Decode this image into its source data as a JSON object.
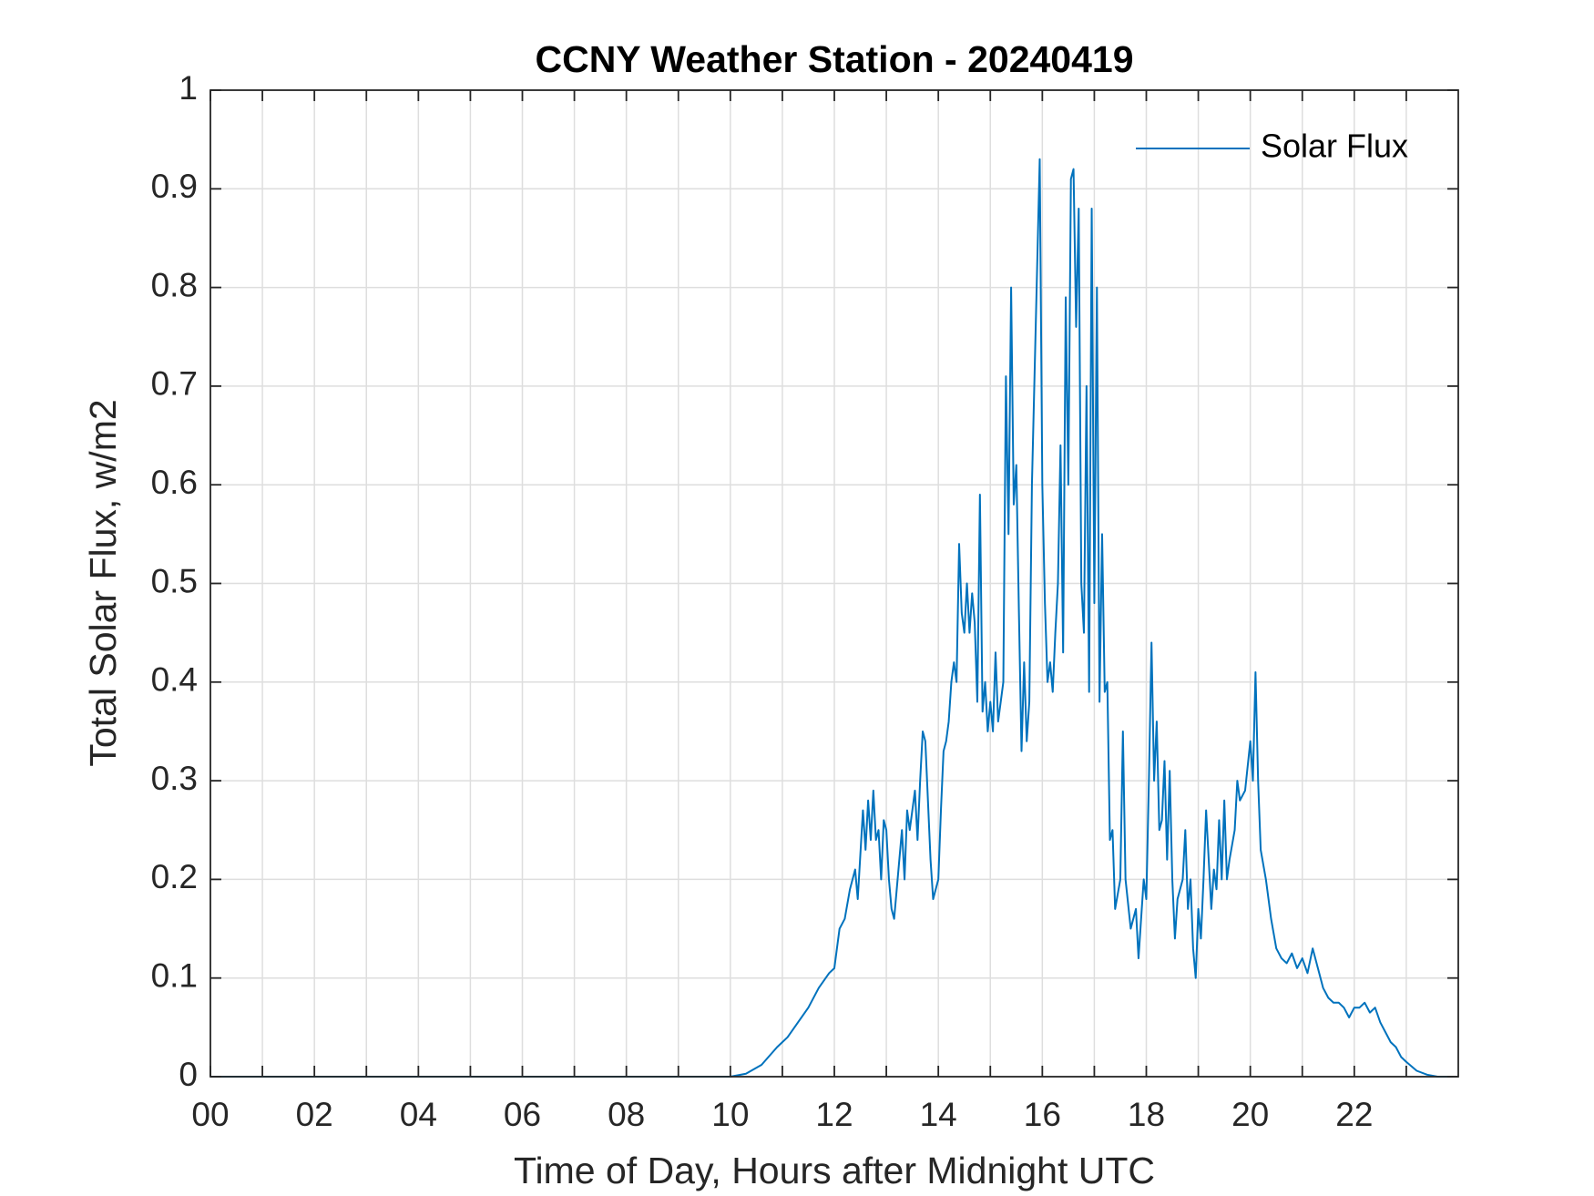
{
  "chart_data": {
    "type": "line",
    "title": "CCNY Weather Station - 20240419",
    "x_label": "Time of Day, Hours after Midnight UTC",
    "y_label": "Total Solar Flux, w/m2",
    "xlim": [
      0,
      24
    ],
    "xticks": [
      {
        "value": 0,
        "label": "00"
      },
      {
        "value": 2,
        "label": "02"
      },
      {
        "value": 4,
        "label": "04"
      },
      {
        "value": 6,
        "label": "06"
      },
      {
        "value": 8,
        "label": "08"
      },
      {
        "value": 10,
        "label": "10"
      },
      {
        "value": 12,
        "label": "12"
      },
      {
        "value": 14,
        "label": "14"
      },
      {
        "value": 16,
        "label": "16"
      },
      {
        "value": 18,
        "label": "18"
      },
      {
        "value": 20,
        "label": "20"
      },
      {
        "value": 22,
        "label": "22"
      }
    ],
    "x_minor_ticks": [
      1,
      3,
      5,
      7,
      9,
      11,
      13,
      15,
      17,
      19,
      21,
      23
    ],
    "ylim": [
      0,
      1
    ],
    "yticks": [
      0,
      0.1,
      0.2,
      0.3,
      0.4,
      0.5,
      0.6,
      0.7,
      0.8,
      0.9,
      1
    ],
    "grid": true,
    "legend": "upper right",
    "x": [
      0,
      10,
      10.3,
      10.6,
      10.9,
      11.1,
      11.3,
      11.5,
      11.7,
      11.9,
      12,
      12.1,
      12.2,
      12.3,
      12.4,
      12.45,
      12.55,
      12.6,
      12.65,
      12.7,
      12.75,
      12.8,
      12.85,
      12.9,
      12.95,
      13,
      13.05,
      13.1,
      13.15,
      13.2,
      13.3,
      13.35,
      13.4,
      13.45,
      13.55,
      13.6,
      13.65,
      13.7,
      13.75,
      13.8,
      13.85,
      13.9,
      14,
      14.05,
      14.1,
      14.15,
      14.2,
      14.25,
      14.3,
      14.35,
      14.4,
      14.45,
      14.5,
      14.55,
      14.6,
      14.65,
      14.7,
      14.75,
      14.8,
      14.85,
      14.9,
      14.95,
      15,
      15.05,
      15.1,
      15.15,
      15.2,
      15.25,
      15.3,
      15.35,
      15.4,
      15.45,
      15.5,
      15.55,
      15.6,
      15.65,
      15.7,
      15.75,
      15.8,
      15.85,
      15.9,
      15.95,
      16,
      16.05,
      16.1,
      16.15,
      16.2,
      16.25,
      16.3,
      16.35,
      16.4,
      16.45,
      16.5,
      16.55,
      16.6,
      16.65,
      16.7,
      16.75,
      16.8,
      16.85,
      16.9,
      16.95,
      17,
      17.05,
      17.1,
      17.15,
      17.2,
      17.25,
      17.3,
      17.35,
      17.4,
      17.5,
      17.55,
      17.6,
      17.7,
      17.8,
      17.85,
      17.9,
      17.95,
      18,
      18.05,
      18.1,
      18.15,
      18.2,
      18.25,
      18.3,
      18.35,
      18.4,
      18.45,
      18.5,
      18.55,
      18.6,
      18.7,
      18.75,
      18.8,
      18.85,
      18.9,
      18.95,
      19,
      19.05,
      19.1,
      19.15,
      19.2,
      19.25,
      19.3,
      19.35,
      19.4,
      19.45,
      19.5,
      19.55,
      19.6,
      19.7,
      19.75,
      19.8,
      19.9,
      20,
      20.05,
      20.1,
      20.15,
      20.2,
      20.3,
      20.4,
      20.5,
      20.6,
      20.7,
      20.8,
      20.9,
      21,
      21.1,
      21.2,
      21.3,
      21.4,
      21.5,
      21.6,
      21.7,
      21.8,
      21.9,
      22,
      22.1,
      22.2,
      22.3,
      22.4,
      22.5,
      22.6,
      22.7,
      22.8,
      22.9,
      23,
      23.2,
      23.4,
      23.6,
      23.9
    ],
    "series": [
      {
        "name": "Solar Flux",
        "color": "#0072BD",
        "values": [
          0,
          0,
          0.003,
          0.012,
          0.03,
          0.04,
          0.055,
          0.07,
          0.09,
          0.105,
          0.11,
          0.15,
          0.16,
          0.19,
          0.21,
          0.18,
          0.27,
          0.23,
          0.28,
          0.24,
          0.29,
          0.24,
          0.25,
          0.2,
          0.26,
          0.25,
          0.2,
          0.17,
          0.16,
          0.19,
          0.25,
          0.2,
          0.27,
          0.25,
          0.29,
          0.24,
          0.3,
          0.35,
          0.34,
          0.28,
          0.22,
          0.18,
          0.2,
          0.27,
          0.33,
          0.34,
          0.36,
          0.4,
          0.42,
          0.4,
          0.54,
          0.47,
          0.45,
          0.5,
          0.45,
          0.49,
          0.46,
          0.38,
          0.59,
          0.37,
          0.4,
          0.35,
          0.38,
          0.35,
          0.43,
          0.36,
          0.38,
          0.4,
          0.71,
          0.55,
          0.8,
          0.58,
          0.62,
          0.47,
          0.33,
          0.42,
          0.34,
          0.38,
          0.6,
          0.71,
          0.82,
          0.93,
          0.6,
          0.48,
          0.4,
          0.42,
          0.39,
          0.45,
          0.5,
          0.64,
          0.43,
          0.79,
          0.6,
          0.91,
          0.92,
          0.76,
          0.88,
          0.5,
          0.45,
          0.7,
          0.39,
          0.88,
          0.48,
          0.8,
          0.38,
          0.55,
          0.39,
          0.4,
          0.24,
          0.25,
          0.17,
          0.2,
          0.35,
          0.2,
          0.15,
          0.17,
          0.12,
          0.16,
          0.2,
          0.18,
          0.3,
          0.44,
          0.3,
          0.36,
          0.25,
          0.26,
          0.32,
          0.22,
          0.31,
          0.2,
          0.14,
          0.18,
          0.2,
          0.25,
          0.17,
          0.2,
          0.13,
          0.1,
          0.17,
          0.14,
          0.2,
          0.27,
          0.22,
          0.17,
          0.21,
          0.19,
          0.26,
          0.2,
          0.28,
          0.2,
          0.22,
          0.25,
          0.3,
          0.28,
          0.29,
          0.34,
          0.3,
          0.41,
          0.3,
          0.23,
          0.2,
          0.16,
          0.13,
          0.12,
          0.115,
          0.125,
          0.11,
          0.12,
          0.105,
          0.13,
          0.11,
          0.09,
          0.08,
          0.075,
          0.075,
          0.07,
          0.06,
          0.07,
          0.07,
          0.075,
          0.065,
          0.07,
          0.055,
          0.045,
          0.035,
          0.03,
          0.02,
          0.015,
          0.006,
          0.002,
          0,
          0
        ]
      }
    ]
  }
}
